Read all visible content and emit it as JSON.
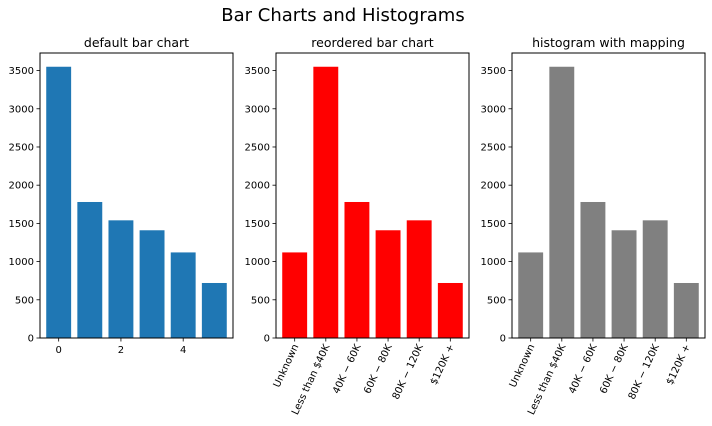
{
  "figure": {
    "suptitle": "Bar Charts and Histograms"
  },
  "chart_data": [
    {
      "type": "bar",
      "title": "default bar chart",
      "xlabel": "",
      "ylabel": "",
      "x": [
        0,
        1,
        2,
        3,
        4,
        5
      ],
      "values": [
        3550,
        1780,
        1540,
        1410,
        1120,
        720
      ],
      "xticks": [
        0,
        2,
        4
      ],
      "xlim": [
        -0.6,
        5.6
      ],
      "ylim": [
        0,
        3730
      ],
      "yticks": [
        0,
        500,
        1000,
        1500,
        2000,
        2500,
        3000,
        3500
      ],
      "color": "#1f77b4",
      "grid": false
    },
    {
      "type": "bar",
      "title": "reordered bar chart",
      "xlabel": "",
      "ylabel": "",
      "categories": [
        "Unknown",
        "Less than $40K",
        "$40K - $60K",
        "$60K - $80K",
        "$80K - $120K",
        "$120K +"
      ],
      "tick_labels": [
        "Unknown",
        "Less than $40K",
        "40K − 60K",
        "60K − 80K",
        "80K − 120K",
        "$120K +"
      ],
      "values": [
        1120,
        3550,
        1780,
        1410,
        1540,
        720
      ],
      "ylim": [
        0,
        3730
      ],
      "yticks": [
        0,
        500,
        1000,
        1500,
        2000,
        2500,
        3000,
        3500
      ],
      "color": "#ff0000",
      "grid": false
    },
    {
      "type": "bar",
      "title": "histogram with mapping",
      "xlabel": "",
      "ylabel": "",
      "categories": [
        "Unknown",
        "Less than $40K",
        "$40K - $60K",
        "$60K - $80K",
        "$80K - $120K",
        "$120K +"
      ],
      "tick_labels": [
        "Unknown",
        "Less than $40K",
        "40K − 60K",
        "60K − 80K",
        "80K − 120K",
        "$120K +"
      ],
      "values": [
        1120,
        3550,
        1780,
        1410,
        1540,
        720
      ],
      "ylim": [
        0,
        3730
      ],
      "yticks": [
        0,
        500,
        1000,
        1500,
        2000,
        2500,
        3000,
        3500
      ],
      "color": "#808080",
      "grid": false
    }
  ]
}
